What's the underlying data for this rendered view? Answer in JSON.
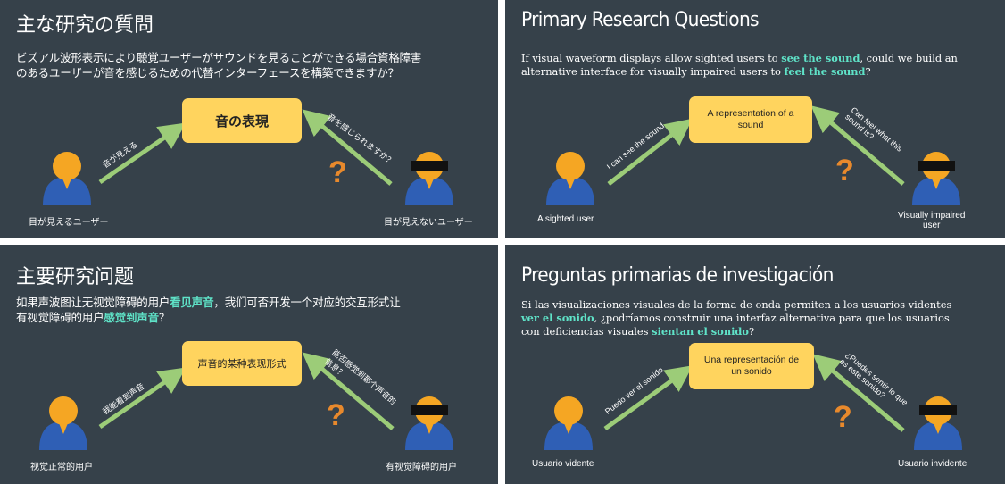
{
  "slides": {
    "ja": {
      "title": "主な研究の質問",
      "body_line1": "ビズアル波形表示により聴覚ユーザーがサウンドを見ることができる場合資格障害",
      "body_line2": "のあるユーザーが音を感じるための代替インターフェースを構築できますか？",
      "box": "音の表現",
      "left_arrow": "音が見える",
      "right_arrow": "音を感じられますか？",
      "left_user": "目が見えるユーザー",
      "right_user": "目が見えないユーザー",
      "question": "?"
    },
    "en": {
      "title": "Primary Research Questions",
      "body_pre": "If visual waveform displays allow sighted users to ",
      "body_hl1": "see the sound",
      "body_mid": ", could we build an",
      "body_line2_pre": "alternative interface for visually impaired users to ",
      "body_hl2": "feel the sound",
      "body_end": "?",
      "box_line1": "A representation of a",
      "box_line2": "sound",
      "left_arrow": "I can see the sound",
      "right_arrow_line1": "Can feel what this",
      "right_arrow_line2": "sound is?",
      "left_user": "A sighted user",
      "right_user_line1": "Visually impaired",
      "right_user_line2": "user",
      "question": "?"
    },
    "zh": {
      "title": "主要研究问题",
      "body_pre": "如果声波图让无视觉障碍的用户",
      "body_hl1": "看见声音",
      "body_post": "，我们可否开发一个对应的交互形式让",
      "body_line2_pre": "有视觉障碍的用户",
      "body_hl2": "感觉到声音",
      "body_end": "？",
      "box": "声音的某种表现形式",
      "left_arrow": "我能看到声音",
      "right_arrow_line1": "能否感觉到那个声音的",
      "right_arrow_line2": "信息？",
      "left_user": "视觉正常的用户",
      "right_user": "有视觉障碍的用户",
      "question": "?"
    },
    "es": {
      "title": "Preguntas primarias de investigación",
      "body_line1": "Si las visualizaciones visuales de la forma de onda permiten a los usuarios videntes",
      "body_hl1": "ver el sonido",
      "body_line2_post": ", ¿podríamos construir una interfaz alternativa para que los usuarios",
      "body_line3_pre": "con deficiencias visuales ",
      "body_hl2": "sientan el sonido",
      "body_end": "?",
      "box_line1": "Una representación de",
      "box_line2": "un sonido",
      "left_arrow": "Puedo ver el sonido",
      "right_arrow_line1": "¿Puedes sentir lo que",
      "right_arrow_line2": "es este sonido?",
      "left_user": "Usuario vidente",
      "right_user": "Usuario invidente",
      "question": "?"
    }
  },
  "colors": {
    "slide_bg": "#36414a",
    "highlight": "#5fe3c8",
    "box": "#ffd45e",
    "arrow": "#9ccc78",
    "question": "#e8892c",
    "person_head": "#f5a623",
    "person_body": "#2f5fb5"
  },
  "icons": [
    "sighted-user-icon",
    "blindfolded-user-icon",
    "arrow-icon",
    "question-mark-icon"
  ]
}
